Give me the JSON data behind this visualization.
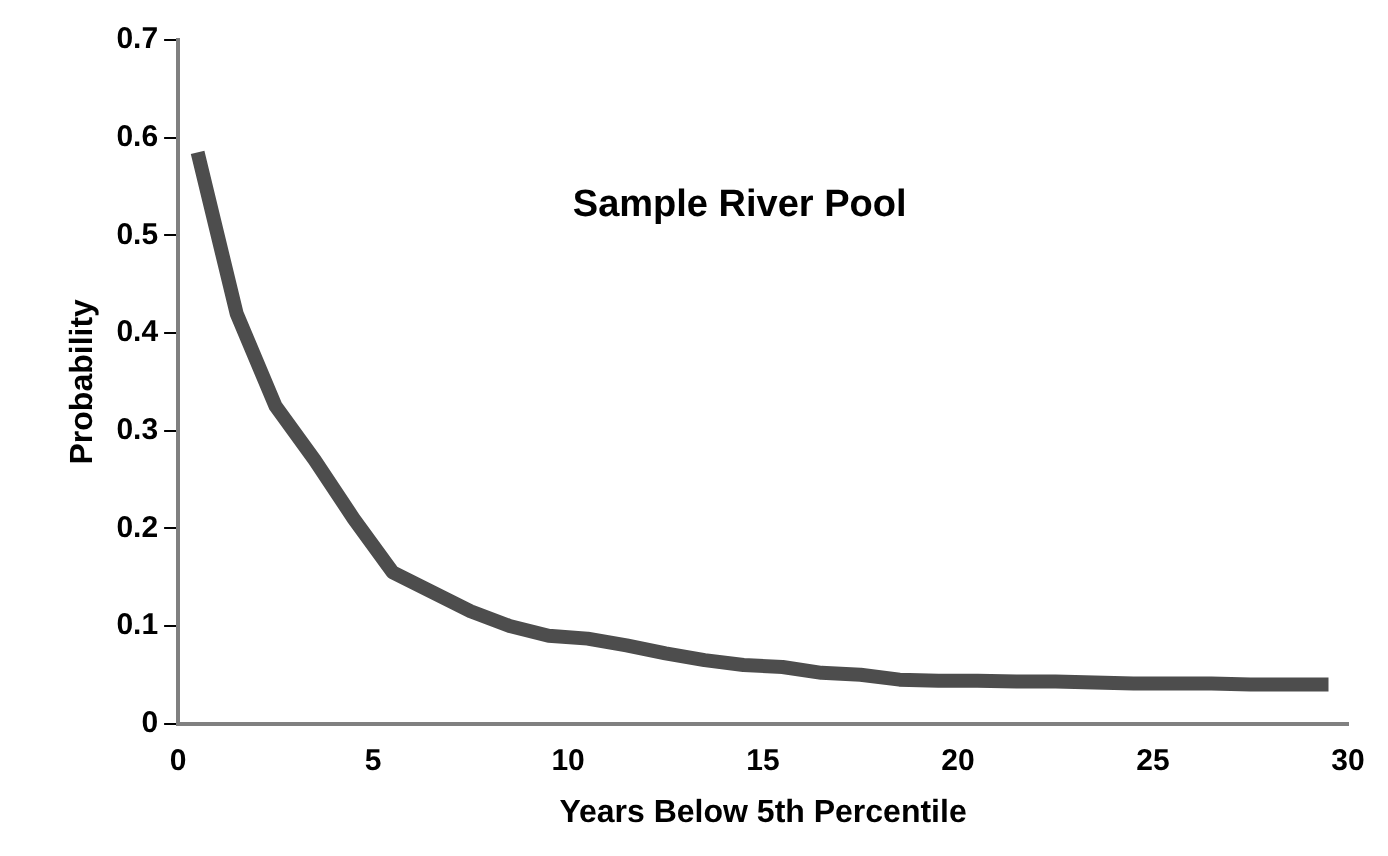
{
  "chart_data": {
    "type": "line",
    "title": "Sample River Pool",
    "xlabel": "Years Below 5th Percentile",
    "ylabel": "Probability",
    "x": [
      0.5,
      1.5,
      2.5,
      3.5,
      4.5,
      5.5,
      6.5,
      7.5,
      8.5,
      9.5,
      10.5,
      11.5,
      12.5,
      13.5,
      14.5,
      15.5,
      16.5,
      17.5,
      18.5,
      19.5,
      20.5,
      21.5,
      22.5,
      23.5,
      24.5,
      25.5,
      26.5,
      27.5,
      28.5,
      29.5
    ],
    "series": [
      {
        "color": "#4d4d4d",
        "values": [
          0.585,
          0.42,
          0.325,
          0.27,
          0.21,
          0.155,
          0.135,
          0.115,
          0.1,
          0.09,
          0.087,
          0.08,
          0.072,
          0.065,
          0.06,
          0.058,
          0.052,
          0.05,
          0.045,
          0.044,
          0.044,
          0.043,
          0.043,
          0.042,
          0.041,
          0.041,
          0.041,
          0.04,
          0.04,
          0.04
        ]
      }
    ],
    "xlim": [
      0,
      30
    ],
    "xticks": [
      0,
      5,
      10,
      15,
      20,
      25,
      30
    ],
    "ylim": [
      0,
      0.7
    ],
    "yticks": [
      0,
      0.1,
      0.2,
      0.3,
      0.4,
      0.5,
      0.6,
      0.7
    ],
    "grid": false,
    "legend": false,
    "marker": "none",
    "line_style": "solid"
  }
}
